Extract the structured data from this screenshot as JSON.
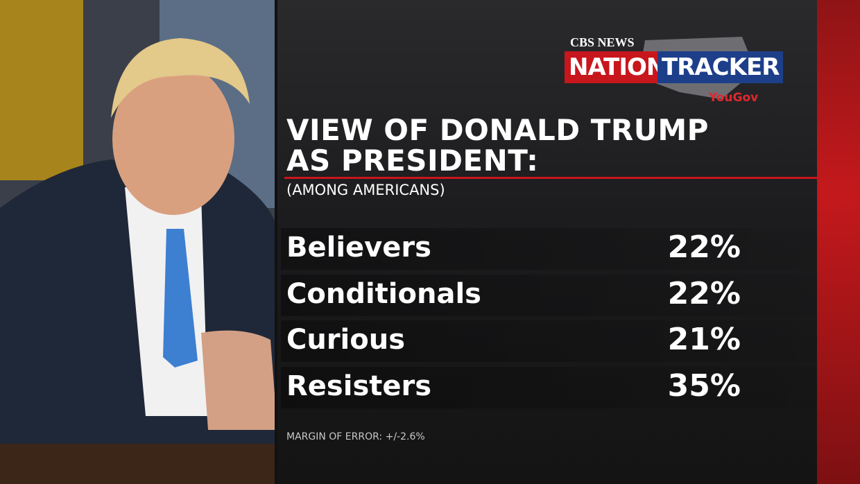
{
  "logo": {
    "network": "CBS NEWS",
    "brand": [
      "NATION",
      "TRACKER"
    ],
    "partner": "YouGov"
  },
  "title": [
    "VIEW OF DONALD TRUMP",
    "AS PRESIDENT:"
  ],
  "subtitle": "(AMONG AMERICANS)",
  "rows": [
    [
      "Believers",
      "22%"
    ],
    [
      "Conditionals",
      "22%"
    ],
    [
      "Curious",
      "21%"
    ],
    [
      "Resisters",
      "35%"
    ]
  ],
  "footnote": "MARGIN OF ERROR: +/-2.6%"
}
